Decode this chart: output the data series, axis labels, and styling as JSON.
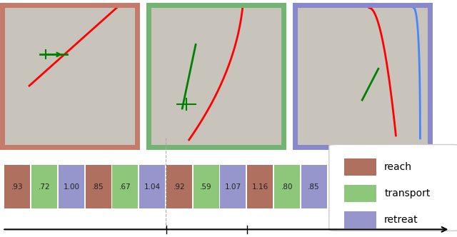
{
  "segments": [
    {
      "label": ".93",
      "color": "#b07060",
      "type": "reach"
    },
    {
      "label": ".72",
      "color": "#8dc87a",
      "type": "transport"
    },
    {
      "label": "1.00",
      "color": "#9696cc",
      "type": "retreat"
    },
    {
      "label": ".85",
      "color": "#b07060",
      "type": "reach"
    },
    {
      "label": ".67",
      "color": "#8dc87a",
      "type": "transport"
    },
    {
      "label": "1.04",
      "color": "#9696cc",
      "type": "retreat"
    },
    {
      "label": ".92",
      "color": "#b07060",
      "type": "reach"
    },
    {
      "label": ".59",
      "color": "#8dc87a",
      "type": "transport"
    },
    {
      "label": "1.07",
      "color": "#9696cc",
      "type": "retreat"
    },
    {
      "label": "1.16",
      "color": "#b07060",
      "type": "reach"
    },
    {
      "label": ".80",
      "color": "#8dc87a",
      "type": "transport"
    },
    {
      "label": ".85",
      "color": "#9696cc",
      "type": "retreat"
    }
  ],
  "reach_color": "#b07060",
  "transport_color": "#8dc87a",
  "retreat_color": "#9696cc",
  "frame_colors": [
    "#c47c6a",
    "#72b472",
    "#8888cc"
  ],
  "legend_labels": [
    "reach",
    "transport",
    "retreat"
  ],
  "bg_color": "#ffffff",
  "img_bg": "#d0ccc8",
  "segment_widths": [
    0.93,
    0.72,
    1.0,
    0.85,
    0.67,
    1.04,
    0.92,
    0.59,
    1.07,
    1.16,
    0.8,
    0.85
  ]
}
